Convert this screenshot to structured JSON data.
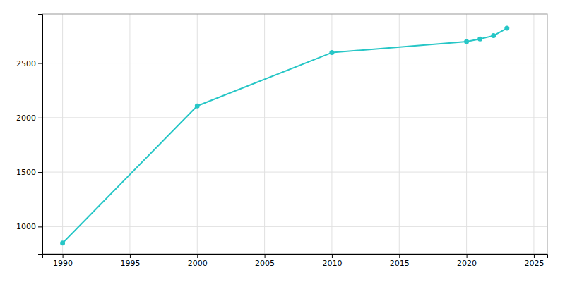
{
  "chart_data": {
    "type": "line",
    "x": [
      1990,
      2000,
      2010,
      2020,
      2021,
      2022,
      2023
    ],
    "values": [
      849,
      2107,
      2597,
      2697,
      2722,
      2752,
      2820
    ],
    "color": "#26C6C6",
    "marker": "circle",
    "xlim": [
      1988.5,
      2026
    ],
    "ylim": [
      750,
      2950
    ],
    "xticks": [
      1990,
      1995,
      2000,
      2005,
      2010,
      2015,
      2020,
      2025
    ],
    "yticks": [
      1000,
      1500,
      2000,
      2500
    ],
    "grid": true
  }
}
